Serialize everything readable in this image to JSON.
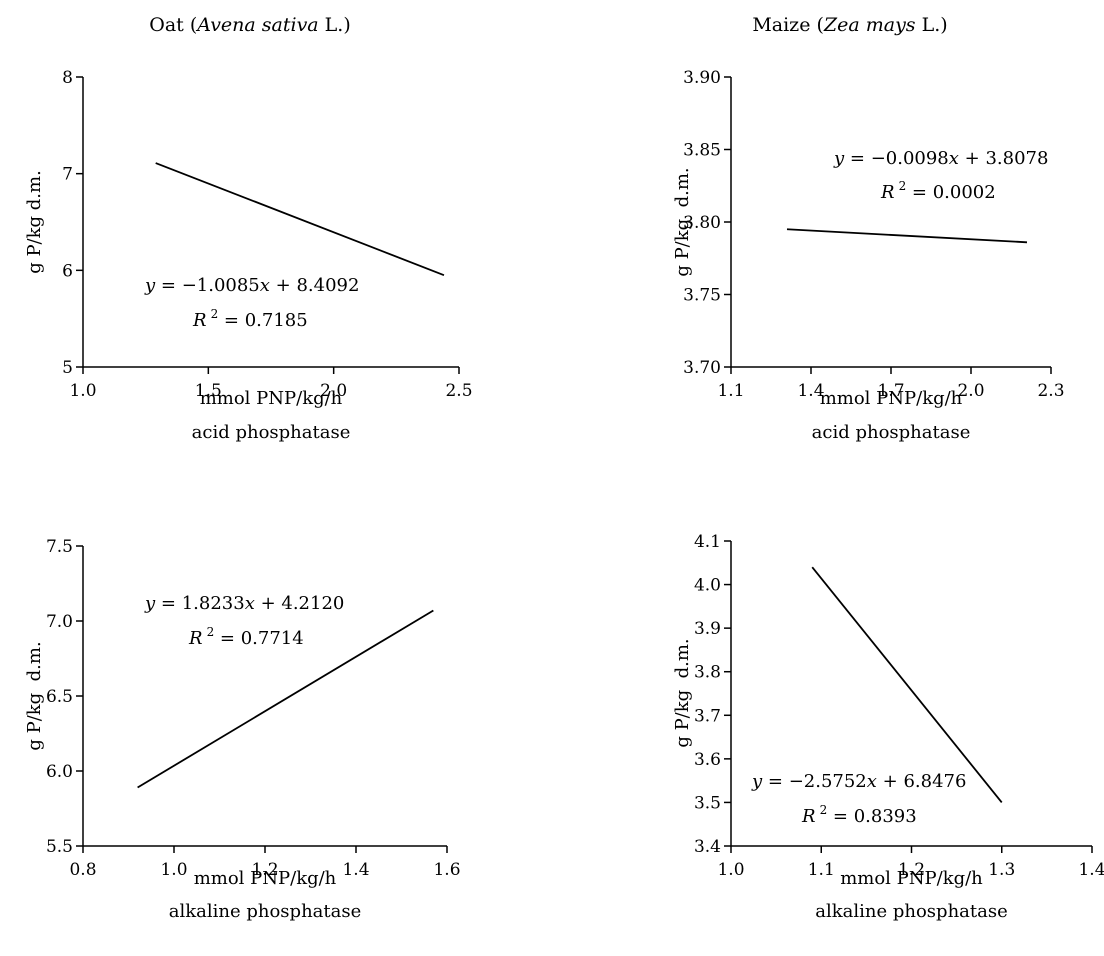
{
  "columns": [
    {
      "name": "Oat (",
      "latin": "Avena sativa",
      "suffix": " L.)"
    },
    {
      "name": "Maize (",
      "latin": "Zea mays",
      "suffix": " L.)"
    }
  ],
  "chart_data": [
    {
      "type": "line",
      "panel": "oat-acid",
      "xlabel": "mmol PNP/kg/h",
      "xlabel2": "acid phosphatase",
      "ylabel": "g P/kg d.m.",
      "xlim": [
        1.0,
        2.5
      ],
      "ylim": [
        5,
        8
      ],
      "xticks": [
        "1.0",
        "1.5",
        "2.0",
        "2.5"
      ],
      "yticks": [
        "5",
        "6",
        "7",
        "8"
      ],
      "x": [
        1.29,
        2.44
      ],
      "y": [
        7.11,
        5.95
      ],
      "equation": {
        "y": "y",
        "rhs": " = −1.0085",
        "x": "x",
        "tail": " + 8.4092"
      },
      "r2": {
        "r": "R",
        "sup": "2",
        "val": " = 0.7185"
      }
    },
    {
      "type": "line",
      "panel": "maize-acid",
      "xlabel": "mmol PNP/kg/h",
      "xlabel2": "acid phosphatase",
      "ylabel": "g P/kg  d.m.",
      "xlim": [
        1.1,
        2.3
      ],
      "ylim": [
        3.7,
        3.9
      ],
      "xticks": [
        "1.1",
        "1.4",
        "1.7",
        "2.0",
        "2.3"
      ],
      "yticks": [
        "3.70",
        "3.75",
        "3.80",
        "3.85",
        "3.90"
      ],
      "x": [
        1.31,
        2.21
      ],
      "y": [
        3.795,
        3.786
      ],
      "equation": {
        "y": "y",
        "rhs": " = −0.0098",
        "x": "x",
        "tail": " + 3.8078"
      },
      "r2": {
        "r": "R",
        "sup": "2",
        "val": " = 0.0002"
      }
    },
    {
      "type": "line",
      "panel": "oat-alkaline",
      "xlabel": "mmol PNP/kg/h",
      "xlabel2": "alkaline phosphatase",
      "ylabel": "g P/kg  d.m.",
      "xlim": [
        0.8,
        1.6
      ],
      "ylim": [
        5.5,
        7.5
      ],
      "xticks": [
        "0.8",
        "1.0",
        "1.2",
        "1.4",
        "1.6"
      ],
      "yticks": [
        "5.5",
        "6.0",
        "6.5",
        "7.0",
        "7.5"
      ],
      "x": [
        0.92,
        1.57
      ],
      "y": [
        5.89,
        7.07
      ],
      "equation": {
        "y": "y",
        "rhs": " = 1.8233",
        "x": "x",
        "tail": " + 4.2120"
      },
      "r2": {
        "r": "R",
        "sup": "2",
        "val": " = 0.7714"
      }
    },
    {
      "type": "line",
      "panel": "maize-alkaline",
      "xlabel": "mmol PNP/kg/h",
      "xlabel2": "alkaline phosphatase",
      "ylabel": "g P/kg  d.m.",
      "xlim": [
        1.0,
        1.4
      ],
      "ylim": [
        3.4,
        4.1
      ],
      "xticks": [
        "1.0",
        "1.1",
        "1.2",
        "1.3",
        "1.4"
      ],
      "yticks": [
        "3.4",
        "3.5",
        "3.6",
        "3.7",
        "3.8",
        "3.9",
        "4.0",
        "4.1"
      ],
      "x": [
        1.09,
        1.3
      ],
      "y": [
        4.04,
        3.5
      ],
      "equation": {
        "y": "y",
        "rhs": " = −2.5752",
        "x": "x",
        "tail": " + 6.8476"
      },
      "r2": {
        "r": "R",
        "sup": "2",
        "val": " = 0.8393"
      }
    }
  ]
}
